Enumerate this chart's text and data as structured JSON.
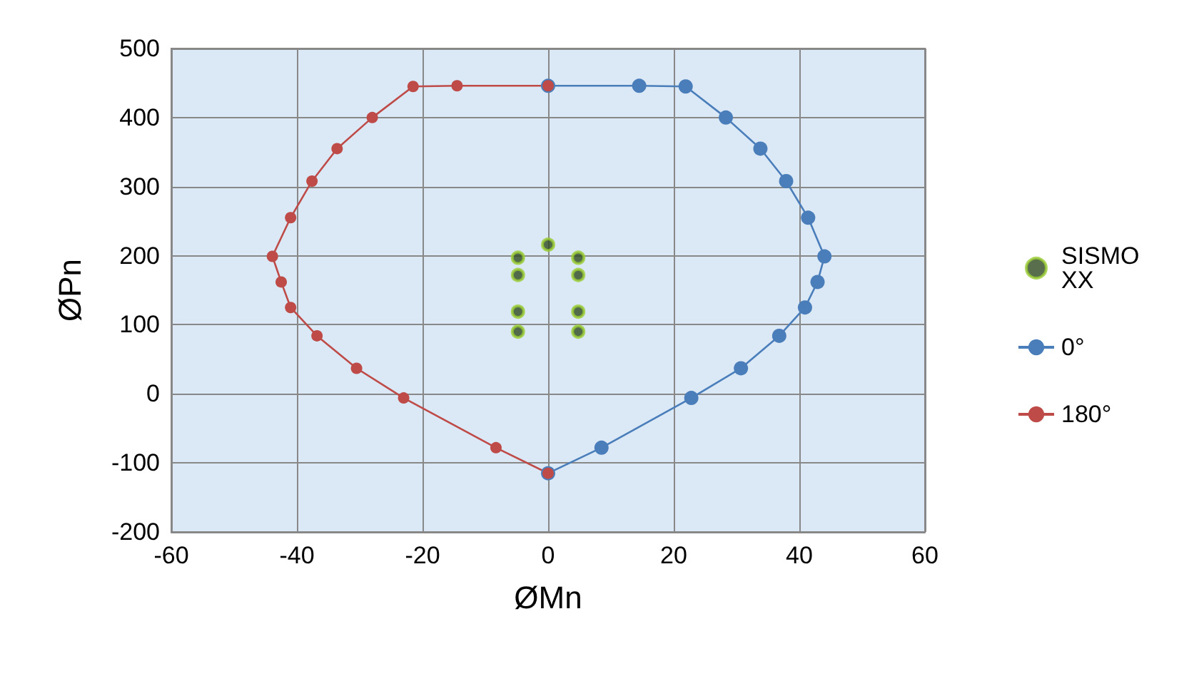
{
  "chart_data": {
    "type": "line",
    "xlabel": "ØMn",
    "ylabel": "ØPn",
    "xlim": [
      -60,
      60
    ],
    "xticks": [
      -60,
      -40,
      -20,
      0,
      20,
      40,
      60
    ],
    "ylim": [
      -200,
      500
    ],
    "yticks": [
      -200,
      -100,
      0,
      100,
      200,
      300,
      400,
      500
    ],
    "grid": true,
    "legend": "right",
    "marker": "circle",
    "line_style": "solid",
    "series": [
      {
        "name": "SISMO XX",
        "type": "scatter",
        "color": "#2e4a1f",
        "x": [
          0,
          -4.8,
          4.8,
          -4.8,
          4.8,
          -4.8,
          4.8,
          -4.8,
          4.8
        ],
        "values": [
          216,
          197,
          197,
          172,
          172,
          119,
          119,
          90,
          90
        ]
      },
      {
        "name": "0°",
        "color": "#4a7ebb",
        "x": [
          0,
          14.5,
          21.9,
          28.3,
          33.8,
          37.9,
          41.4,
          44,
          42.9,
          40.9,
          36.8,
          30.7,
          22.8,
          8.5,
          0
        ],
        "values": [
          446,
          446,
          445,
          400,
          355,
          308,
          255,
          199,
          162,
          125,
          84,
          37,
          -6,
          -78,
          -115
        ]
      },
      {
        "name": "180°",
        "color": "#be4b48",
        "x": [
          0,
          -14.5,
          -21.5,
          -28,
          -33.6,
          -37.6,
          -41,
          -43.9,
          -42.5,
          -41,
          -36.8,
          -30.5,
          -23,
          -8.3,
          0
        ],
        "values": [
          446,
          446,
          445,
          400,
          355,
          308,
          255,
          199,
          162,
          125,
          84,
          37,
          -6,
          -78,
          -115
        ]
      }
    ]
  }
}
